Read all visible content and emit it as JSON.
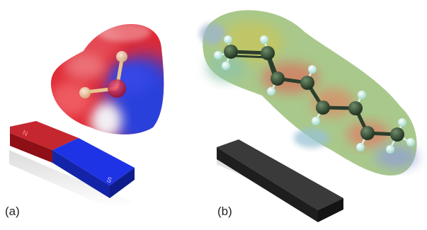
{
  "panels": [
    {
      "label": "(a)",
      "magnet": {
        "north": "N",
        "south": "S"
      }
    },
    {
      "label": "(b)"
    }
  ],
  "colors": {
    "north_pole": "#c0151d",
    "south_pole": "#1f33e6",
    "neutral_bar": "#3a3a3a",
    "potential_negative": "#e2323a",
    "potential_positive": "#2b3fdb",
    "potential_neutral": "#7ec86e",
    "carbon_atom": "#2f4a2f",
    "hydrogen_atom": "#d8f4ec",
    "oxygen_atom": "#c81230"
  },
  "icons": {
    "water_model": "water-electrostatic-potential-icon",
    "polyene_model": "polyene-electrostatic-potential-icon"
  }
}
